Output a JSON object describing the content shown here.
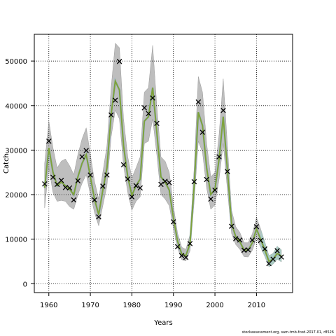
{
  "chart_data": {
    "type": "line",
    "xlabel": "Years",
    "ylabel": "Catch",
    "xlim": [
      1956.5,
      2018.7
    ],
    "ylim": [
      -2000,
      56000
    ],
    "xticks": [
      1960,
      1970,
      1980,
      1990,
      2000,
      2010
    ],
    "yticks": [
      0,
      10000,
      20000,
      30000,
      40000,
      50000
    ],
    "grid": true,
    "credit": "stockassessment.org, sam-tmb-fcod-2017-01, r8526",
    "colors": {
      "band": "#bebebe",
      "band_late": "#9ed3c8",
      "line": "#7fa23a",
      "line_alt": "#8fb1d4",
      "points": "#000000"
    },
    "series": [
      {
        "kind": "observed",
        "marker": "x",
        "x": [
          1959,
          1960,
          1961,
          1962,
          1963,
          1964,
          1965,
          1966,
          1967,
          1968,
          1969,
          1970,
          1971,
          1972,
          1973,
          1974,
          1975,
          1976,
          1977,
          1978,
          1979,
          1980,
          1981,
          1982,
          1983,
          1984,
          1985,
          1986,
          1987,
          1988,
          1989,
          1990,
          1991,
          1992,
          1993,
          1994,
          1995,
          1996,
          1997,
          1998,
          1999,
          2000,
          2001,
          2002,
          2003,
          2004,
          2005,
          2006,
          2007,
          2008,
          2009,
          2010,
          2011,
          2012,
          2013,
          2014,
          2015,
          2016
        ],
        "values": [
          22400,
          32000,
          23900,
          22300,
          23200,
          21600,
          21500,
          18800,
          23100,
          28500,
          29900,
          24400,
          18800,
          15000,
          21900,
          24400,
          37900,
          41200,
          49900,
          26700,
          23500,
          19500,
          22000,
          21500,
          39500,
          38200,
          41700,
          36000,
          22300,
          23000,
          22700,
          13900,
          8300,
          6300,
          5900,
          9000,
          22900,
          40800,
          34000,
          23400,
          19000,
          21000,
          28500,
          38900,
          25200,
          12900,
          10100,
          9800,
          7500,
          7600,
          9800,
          12800,
          9700,
          7800,
          4500,
          5500,
          7400,
          6000
        ]
      },
      {
        "kind": "estimated",
        "x": [
          1959,
          1960,
          1961,
          1962,
          1963,
          1964,
          1965,
          1966,
          1967,
          1968,
          1969,
          1970,
          1971,
          1972,
          1973,
          1974,
          1975,
          1976,
          1977,
          1978,
          1979,
          1980,
          1981,
          1982,
          1983,
          1984,
          1985,
          1986,
          1987,
          1988,
          1989,
          1990,
          1991,
          1992,
          1993,
          1994,
          1995,
          1996,
          1997,
          1998,
          1999,
          2000,
          2001,
          2002,
          2003,
          2004,
          2005,
          2006,
          2007,
          2008,
          2009,
          2010,
          2011,
          2012,
          2013,
          2014,
          2015,
          2016
        ],
        "values": [
          21500,
          30500,
          25000,
          22000,
          22800,
          22000,
          21200,
          20000,
          24000,
          27000,
          29000,
          24000,
          19000,
          15500,
          21000,
          26000,
          38000,
          45500,
          43500,
          31000,
          24000,
          19800,
          22000,
          23500,
          36500,
          37500,
          44000,
          34000,
          24000,
          22800,
          21000,
          14800,
          9500,
          6700,
          6300,
          9000,
          22000,
          38500,
          35500,
          26000,
          20000,
          21200,
          28000,
          37500,
          25500,
          13500,
          10600,
          9400,
          7600,
          7500,
          9200,
          12300,
          10000,
          7600,
          5000,
          5500,
          6800,
          6200
        ],
        "lower": [
          17000,
          26000,
          20500,
          18500,
          18700,
          18500,
          17300,
          16700,
          20000,
          22500,
          24500,
          20000,
          16000,
          13000,
          17500,
          22000,
          33000,
          39000,
          37000,
          26500,
          20500,
          16500,
          18500,
          19500,
          31500,
          32000,
          37000,
          29000,
          20000,
          19000,
          17500,
          12500,
          8000,
          5400,
          5100,
          7400,
          18500,
          32000,
          29500,
          21500,
          16700,
          17700,
          23500,
          31500,
          21000,
          11300,
          8800,
          7700,
          6100,
          6000,
          7500,
          10200,
          8200,
          6100,
          3800,
          4400,
          5500,
          4900
        ],
        "upper": [
          27000,
          36500,
          30500,
          26000,
          27500,
          28000,
          26500,
          24500,
          29000,
          32500,
          35000,
          29000,
          23000,
          19000,
          25000,
          31000,
          44000,
          54000,
          53000,
          37000,
          28500,
          23800,
          26000,
          28500,
          43000,
          44000,
          53500,
          40000,
          28500,
          27500,
          25000,
          17500,
          11300,
          8200,
          7700,
          11000,
          26000,
          46500,
          43000,
          31500,
          24000,
          25000,
          33500,
          46000,
          31000,
          16500,
          12800,
          11500,
          9200,
          9200,
          11200,
          14900,
          12300,
          9400,
          6300,
          6800,
          8400,
          7600
        ]
      }
    ]
  }
}
